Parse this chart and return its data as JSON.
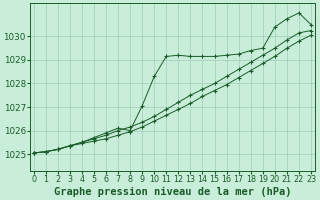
{
  "title": "Graphe pression niveau de la mer (hPa)",
  "bg_color": "#c8edd8",
  "grid_color": "#a0ccb8",
  "line_color": "#1a5c2a",
  "x_hours": [
    0,
    1,
    2,
    3,
    4,
    5,
    6,
    7,
    8,
    9,
    10,
    11,
    12,
    13,
    14,
    15,
    16,
    17,
    18,
    19,
    20,
    21,
    22,
    23
  ],
  "yticks": [
    1025,
    1026,
    1027,
    1028,
    1029,
    1030
  ],
  "y_min": 1024.3,
  "y_max": 1031.4,
  "x_min": -0.3,
  "x_max": 23.3,
  "line1_y": [
    1025.05,
    1025.1,
    1025.2,
    1025.35,
    1025.45,
    1025.55,
    1025.65,
    1025.8,
    1025.95,
    1026.15,
    1026.4,
    1026.65,
    1026.9,
    1027.15,
    1027.45,
    1027.7,
    1027.95,
    1028.25,
    1028.55,
    1028.85,
    1029.15,
    1029.5,
    1029.8,
    1030.05
  ],
  "line2_y": [
    1025.05,
    1025.1,
    1025.2,
    1025.35,
    1025.5,
    1025.65,
    1025.8,
    1026.0,
    1026.15,
    1026.35,
    1026.6,
    1026.9,
    1027.2,
    1027.5,
    1027.75,
    1028.0,
    1028.3,
    1028.6,
    1028.9,
    1029.2,
    1029.5,
    1029.85,
    1030.15,
    1030.25
  ],
  "line3_y": [
    1025.05,
    1025.1,
    1025.2,
    1025.35,
    1025.5,
    1025.7,
    1025.9,
    1026.1,
    1026.0,
    1027.05,
    1028.3,
    1029.15,
    1029.2,
    1029.15,
    1029.15,
    1029.15,
    1029.2,
    1029.25,
    1029.4,
    1029.5,
    1030.4,
    1030.75,
    1031.0,
    1030.5
  ],
  "title_fontsize": 7.5,
  "tick_fontsize": 5.8
}
